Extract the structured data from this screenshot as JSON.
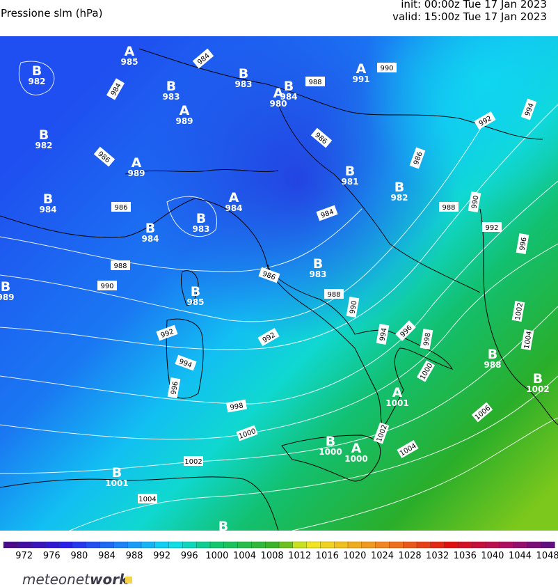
{
  "header": {
    "title": "Pressione slm (hPa)",
    "init": "init: 00:00z Tue 17 Jan 2023",
    "valid": "valid: 15:00z Tue 17 Jan 2023"
  },
  "centers": [
    {
      "letter": "B",
      "value": 982
    },
    {
      "letter": "A",
      "value": 985
    },
    {
      "letter": "B",
      "value": 983
    },
    {
      "letter": "B",
      "value": 983
    },
    {
      "letter": "A",
      "value": 980
    },
    {
      "letter": "B",
      "value": 984
    },
    {
      "letter": "A",
      "value": 991
    },
    {
      "letter": "A",
      "value": 989
    },
    {
      "letter": "B",
      "value": 982
    },
    {
      "letter": "A",
      "value": 989
    },
    {
      "letter": "B",
      "value": 984
    },
    {
      "letter": "A",
      "value": 984
    },
    {
      "letter": "B",
      "value": 983
    },
    {
      "letter": "B",
      "value": 984
    },
    {
      "letter": "B",
      "value": 982
    },
    {
      "letter": "B",
      "value": 981
    },
    {
      "letter": "B",
      "value": 983
    },
    {
      "letter": "B",
      "value": 985
    },
    {
      "letter": "B",
      "value": 989
    },
    {
      "letter": "A",
      "value": 1001
    },
    {
      "letter": "B",
      "value": 1000
    },
    {
      "letter": "A",
      "value": 1000
    },
    {
      "letter": "B",
      "value": 1001
    },
    {
      "letter": "B",
      "value": 988
    },
    {
      "letter": "B",
      "value": 1002
    },
    {
      "letter": "B"
    }
  ],
  "contour_labels": [
    984,
    984,
    988,
    990,
    986,
    986,
    986,
    984,
    988,
    990,
    986,
    988,
    990,
    992,
    994,
    986,
    988,
    990,
    992,
    996,
    992,
    992,
    994,
    996,
    998,
    1000,
    994,
    996,
    998,
    1000,
    1002,
    1004,
    1006,
    1004,
    1002,
    1002,
    1004
  ],
  "colorbar": {
    "ticks": [
      972,
      976,
      980,
      984,
      988,
      992,
      996,
      1000,
      1004,
      1008,
      1012,
      1016,
      1020,
      1024,
      1028,
      1032,
      1036,
      1040,
      1044,
      1048
    ]
  },
  "footer": {
    "logo_main": "meteonet",
    "logo_accent": "work"
  }
}
